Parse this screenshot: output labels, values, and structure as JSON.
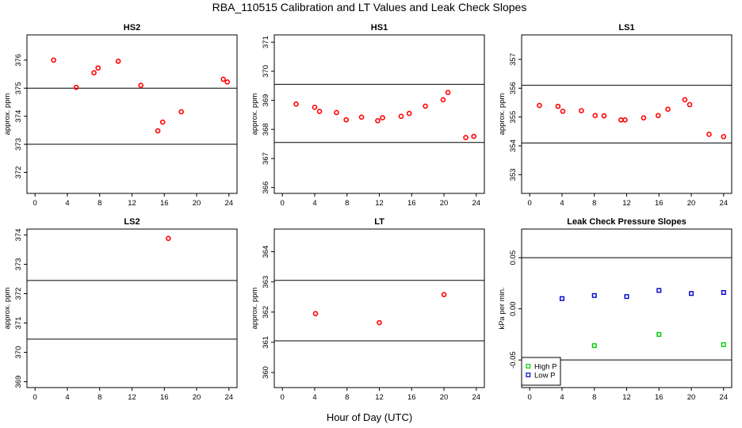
{
  "figure": {
    "title": "RBA_110515  Calibration and LT Values and Leak Check Slopes",
    "xlabel": "Hour of Day (UTC)"
  },
  "colors": {
    "red": "#ff0000",
    "green": "#00cc00",
    "blue": "#0000cc",
    "axes": "#000000"
  },
  "chart_data": [
    {
      "type": "scatter",
      "title": "HS2",
      "ylabel": "approx. ppm",
      "xlim": [
        -1,
        25
      ],
      "ylim": [
        371.25,
        376.9
      ],
      "xticks": [
        0,
        4,
        8,
        12,
        16,
        20,
        24
      ],
      "yticks": [
        372,
        373,
        374,
        375,
        376
      ],
      "hlines": [
        373.0,
        375.0
      ],
      "series": [
        {
          "color": "red",
          "marker": "circle",
          "x": [
            2.3,
            5.1,
            7.3,
            7.8,
            10.3,
            13.1,
            15.2,
            15.8,
            18.1,
            23.3,
            23.8
          ],
          "y": [
            376.0,
            375.03,
            375.55,
            375.72,
            375.96,
            375.1,
            373.48,
            373.79,
            374.16,
            375.32,
            375.22
          ]
        }
      ]
    },
    {
      "type": "scatter",
      "title": "HS1",
      "ylabel": "approx. ppm",
      "xlim": [
        -1,
        25
      ],
      "ylim": [
        365.8,
        371.25
      ],
      "xticks": [
        0,
        4,
        8,
        12,
        16,
        20,
        24
      ],
      "yticks": [
        366,
        367,
        368,
        369,
        370,
        371
      ],
      "hlines": [
        367.55,
        369.55
      ],
      "series": [
        {
          "color": "red",
          "marker": "circle",
          "x": [
            1.7,
            4.0,
            4.6,
            6.7,
            7.9,
            9.8,
            11.8,
            12.4,
            14.7,
            15.7,
            17.7,
            19.9,
            20.5,
            22.7,
            23.7
          ],
          "y": [
            368.87,
            368.76,
            368.62,
            368.58,
            368.33,
            368.42,
            368.3,
            368.4,
            368.45,
            368.55,
            368.8,
            369.02,
            369.27,
            367.72,
            367.76
          ]
        }
      ]
    },
    {
      "type": "scatter",
      "title": "LS1",
      "ylabel": "approx. ppm",
      "xlim": [
        -1,
        25
      ],
      "ylim": [
        352.35,
        357.85
      ],
      "xticks": [
        0,
        4,
        8,
        12,
        16,
        20,
        24
      ],
      "yticks": [
        353,
        354,
        355,
        356,
        357
      ],
      "hlines": [
        354.1,
        356.1
      ],
      "series": [
        {
          "color": "red",
          "marker": "circle",
          "x": [
            1.2,
            3.5,
            4.1,
            6.4,
            8.1,
            9.2,
            11.3,
            11.8,
            14.1,
            15.9,
            17.1,
            19.2,
            19.8,
            22.2,
            24.0
          ],
          "y": [
            355.4,
            355.37,
            355.2,
            355.22,
            355.05,
            355.04,
            354.9,
            354.9,
            354.97,
            355.05,
            355.27,
            355.6,
            355.43,
            354.4,
            354.32
          ]
        }
      ]
    },
    {
      "type": "scatter",
      "title": "LS2",
      "ylabel": "approx. ppm",
      "xlim": [
        -1,
        25
      ],
      "ylim": [
        368.8,
        374.2
      ],
      "xticks": [
        0,
        4,
        8,
        12,
        16,
        20,
        24
      ],
      "yticks": [
        369,
        370,
        371,
        372,
        373,
        374
      ],
      "hlines": [
        370.45,
        372.45
      ],
      "series": [
        {
          "color": "red",
          "marker": "circle",
          "x": [
            16.5
          ],
          "y": [
            373.88
          ]
        }
      ]
    },
    {
      "type": "scatter",
      "title": "LT",
      "ylabel": "approx. ppm",
      "xlim": [
        -1,
        25
      ],
      "ylim": [
        359.5,
        364.75
      ],
      "xticks": [
        0,
        4,
        8,
        12,
        16,
        20,
        24
      ],
      "yticks": [
        360,
        361,
        362,
        363,
        364
      ],
      "hlines": [
        361.05,
        363.05
      ],
      "series": [
        {
          "color": "red",
          "marker": "circle",
          "x": [
            4.1,
            12.0,
            20.0
          ],
          "y": [
            361.95,
            361.65,
            362.58
          ]
        }
      ]
    },
    {
      "type": "scatter",
      "title": "Leak Check Pressure Slopes",
      "ylabel": "kPa per min.",
      "xlim": [
        -1,
        25
      ],
      "ylim": [
        -0.077,
        0.078
      ],
      "xticks": [
        0,
        4,
        8,
        12,
        16,
        20,
        24
      ],
      "yticks": [
        -0.05,
        0.0,
        0.05
      ],
      "ytick_labels": [
        "-0.05",
        "0.00",
        "0.05"
      ],
      "hlines": [
        -0.05,
        0.05
      ],
      "legend": {
        "position": "bottom-left",
        "entries": [
          {
            "label": "High P",
            "color": "green"
          },
          {
            "label": "Low P",
            "color": "blue"
          }
        ]
      },
      "series": [
        {
          "name": "High P",
          "color": "green",
          "marker": "square",
          "x": [
            8.0,
            16.0,
            24.0
          ],
          "y": [
            -0.036,
            -0.025,
            -0.035
          ]
        },
        {
          "name": "Low P",
          "color": "blue",
          "marker": "square",
          "x": [
            4.0,
            8.0,
            12.0,
            16.0,
            20.0,
            24.0
          ],
          "y": [
            0.01,
            0.013,
            0.012,
            0.018,
            0.015,
            0.016
          ]
        }
      ]
    }
  ]
}
